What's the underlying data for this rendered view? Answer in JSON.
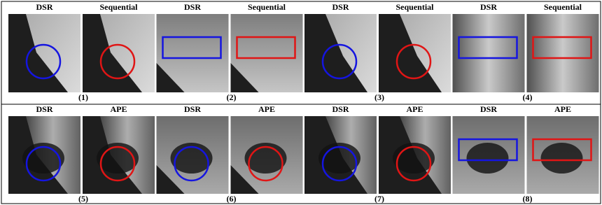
{
  "rows": [
    {
      "groups": [
        {
          "titles": [
            "DSR",
            "Sequential"
          ],
          "label": "(1)"
        },
        {
          "titles": [
            "DSR",
            "Sequential"
          ],
          "label": "(2)"
        },
        {
          "titles": [
            "DSR",
            "Sequential"
          ],
          "label": "(3)"
        },
        {
          "titles": [
            "DSR",
            "Sequential"
          ],
          "label": "(4)"
        }
      ]
    },
    {
      "groups": [
        {
          "titles": [
            "DSR",
            "APE"
          ],
          "label": "(5)"
        },
        {
          "titles": [
            "DSR",
            "APE"
          ],
          "label": "(6)"
        },
        {
          "titles": [
            "DSR",
            "APE"
          ],
          "label": "(7)"
        },
        {
          "titles": [
            "DSR",
            "APE"
          ],
          "label": "(8)"
        }
      ]
    }
  ]
}
